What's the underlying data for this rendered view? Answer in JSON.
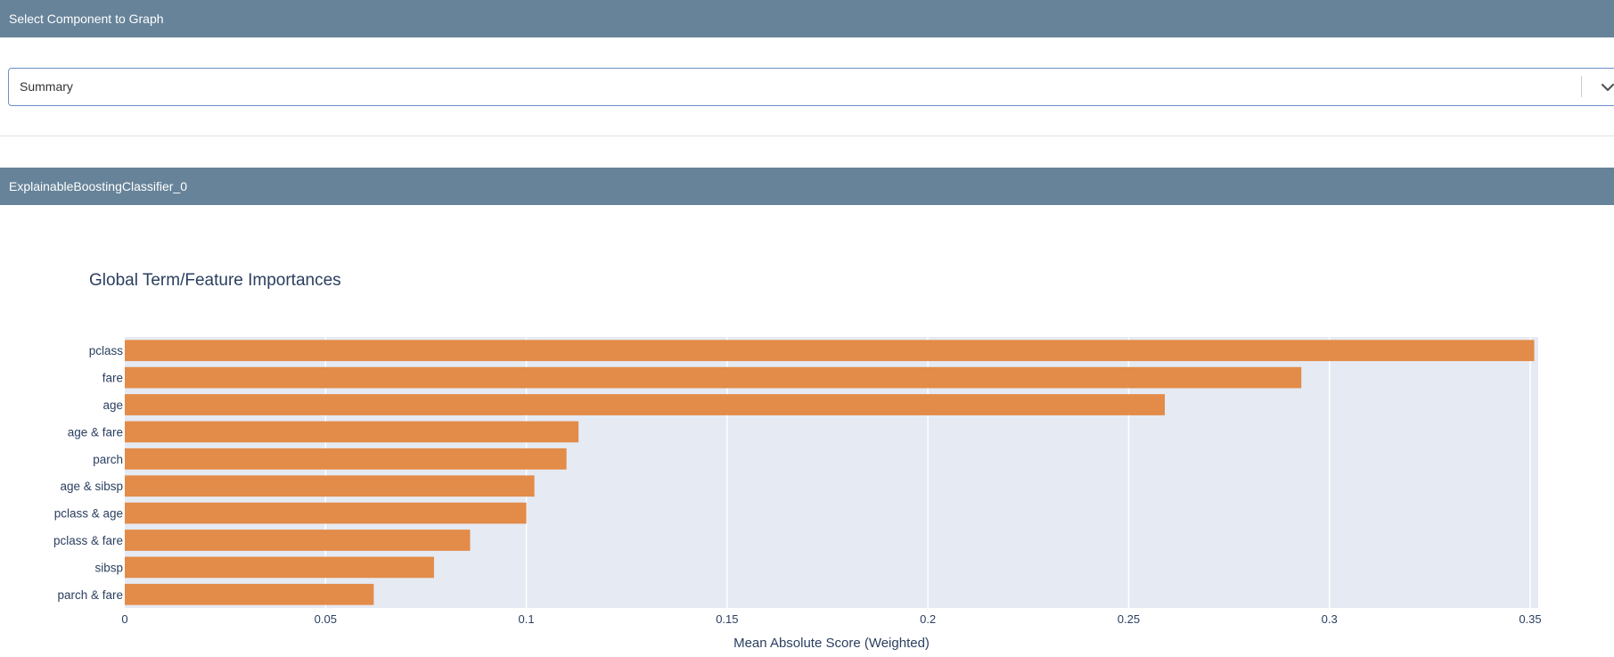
{
  "select_section": {
    "header": "Select Component to Graph",
    "selected_value": "Summary",
    "chevron_icon": "chevron-down-icon"
  },
  "model_section": {
    "header": "ExplainableBoostingClassifier_0"
  },
  "colors": {
    "header_bg": "#668399",
    "bar": "#e38b48",
    "plot_bg": "#e5eaf3"
  },
  "chart_data": {
    "type": "bar",
    "orientation": "horizontal",
    "title": "Global Term/Feature Importances",
    "xlabel": "Mean Absolute Score (Weighted)",
    "ylabel": "",
    "xlim": [
      0,
      0.352
    ],
    "xticks": [
      "0",
      "0.05",
      "0.1",
      "0.15",
      "0.2",
      "0.25",
      "0.3",
      "0.35"
    ],
    "grid": true,
    "categories": [
      "pclass",
      "fare",
      "age",
      "age & fare",
      "parch",
      "age & sibsp",
      "pclass & age",
      "pclass & fare",
      "sibsp",
      "parch & fare"
    ],
    "values": [
      0.351,
      0.293,
      0.259,
      0.113,
      0.11,
      0.102,
      0.1,
      0.086,
      0.077,
      0.062
    ]
  }
}
